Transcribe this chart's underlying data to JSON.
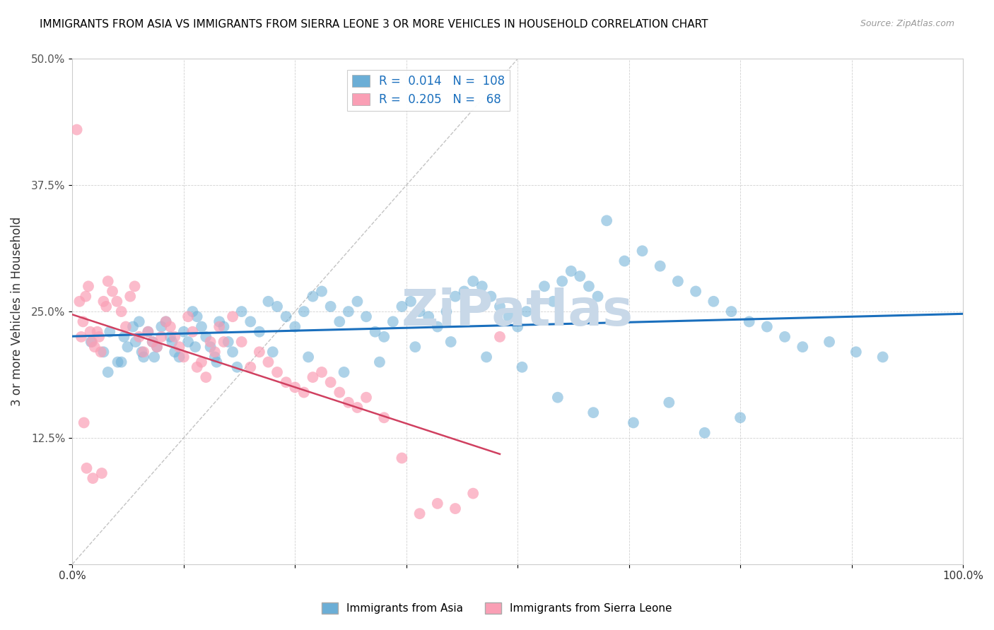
{
  "title": "IMMIGRANTS FROM ASIA VS IMMIGRANTS FROM SIERRA LEONE 3 OR MORE VEHICLES IN HOUSEHOLD CORRELATION CHART",
  "source": "Source: ZipAtlas.com",
  "ylabel": "3 or more Vehicles in Household",
  "xlim": [
    0,
    100
  ],
  "ylim": [
    0,
    50
  ],
  "xticks": [
    0,
    12.5,
    25,
    37.5,
    50,
    62.5,
    75,
    87.5,
    100
  ],
  "yticks": [
    0,
    12.5,
    25,
    37.5,
    50
  ],
  "xtick_labels": [
    "0.0%",
    "",
    "",
    "",
    "",
    "",
    "",
    "",
    "100.0%"
  ],
  "ytick_labels": [
    "",
    "12.5%",
    "25.0%",
    "37.5%",
    "50.0%"
  ],
  "legend_r_asia": "0.014",
  "legend_n_asia": "108",
  "legend_r_sierra": "0.205",
  "legend_n_sierra": "68",
  "blue_color": "#6baed6",
  "pink_color": "#fa9fb5",
  "trend_blue": "#1a6fbd",
  "trend_pink": "#d04060",
  "watermark_color": "#c8d8e8",
  "asia_x": [
    2.1,
    3.5,
    4.2,
    5.1,
    5.8,
    6.2,
    6.8,
    7.1,
    7.5,
    8.0,
    8.5,
    9.0,
    9.5,
    10.0,
    10.5,
    11.0,
    11.5,
    12.0,
    12.5,
    13.0,
    13.5,
    14.0,
    14.5,
    15.0,
    15.5,
    16.0,
    16.5,
    17.0,
    17.5,
    18.0,
    19.0,
    20.0,
    21.0,
    22.0,
    23.0,
    24.0,
    25.0,
    26.0,
    27.0,
    28.0,
    29.0,
    30.0,
    31.0,
    32.0,
    33.0,
    34.0,
    35.0,
    36.0,
    37.0,
    38.0,
    39.0,
    40.0,
    41.0,
    42.0,
    43.0,
    44.0,
    45.0,
    46.0,
    47.0,
    48.0,
    49.0,
    50.0,
    51.0,
    52.0,
    53.0,
    54.0,
    55.0,
    56.0,
    57.0,
    58.0,
    59.0,
    60.0,
    62.0,
    64.0,
    66.0,
    68.0,
    70.0,
    72.0,
    74.0,
    76.0,
    78.0,
    80.0,
    82.0,
    85.0,
    88.0,
    91.0,
    4.0,
    5.5,
    7.8,
    9.2,
    11.2,
    13.8,
    16.2,
    18.5,
    22.5,
    26.5,
    30.5,
    34.5,
    38.5,
    42.5,
    46.5,
    50.5,
    54.5,
    58.5,
    63.0,
    67.0,
    71.0,
    75.0
  ],
  "asia_y": [
    22.0,
    21.0,
    23.0,
    20.0,
    22.5,
    21.5,
    23.5,
    22.0,
    24.0,
    20.5,
    23.0,
    22.0,
    21.5,
    23.5,
    24.0,
    22.5,
    21.0,
    20.5,
    23.0,
    22.0,
    25.0,
    24.5,
    23.5,
    22.5,
    21.5,
    20.5,
    24.0,
    23.5,
    22.0,
    21.0,
    25.0,
    24.0,
    23.0,
    26.0,
    25.5,
    24.5,
    23.5,
    25.0,
    26.5,
    27.0,
    25.5,
    24.0,
    25.0,
    26.0,
    24.5,
    23.0,
    22.5,
    24.0,
    25.5,
    26.0,
    25.0,
    24.5,
    23.5,
    25.0,
    26.5,
    27.0,
    28.0,
    27.5,
    26.5,
    25.5,
    24.5,
    23.5,
    25.0,
    26.0,
    27.5,
    26.0,
    28.0,
    29.0,
    28.5,
    27.5,
    26.5,
    34.0,
    30.0,
    31.0,
    29.5,
    28.0,
    27.0,
    26.0,
    25.0,
    24.0,
    23.5,
    22.5,
    21.5,
    22.0,
    21.0,
    20.5,
    19.0,
    20.0,
    21.0,
    20.5,
    22.0,
    21.5,
    20.0,
    19.5,
    21.0,
    20.5,
    19.0,
    20.0,
    21.5,
    22.0,
    20.5,
    19.5,
    16.5,
    15.0,
    14.0,
    16.0,
    13.0,
    14.5
  ],
  "sierra_x": [
    0.5,
    0.8,
    1.0,
    1.2,
    1.5,
    1.8,
    2.0,
    2.2,
    2.5,
    2.8,
    3.0,
    3.2,
    3.5,
    3.8,
    4.0,
    4.5,
    5.0,
    5.5,
    6.0,
    6.5,
    7.0,
    7.5,
    8.0,
    8.5,
    9.0,
    9.5,
    10.0,
    10.5,
    11.0,
    11.5,
    12.0,
    12.5,
    13.0,
    13.5,
    14.0,
    14.5,
    15.0,
    15.5,
    16.0,
    16.5,
    17.0,
    18.0,
    19.0,
    20.0,
    21.0,
    22.0,
    23.0,
    24.0,
    25.0,
    26.0,
    27.0,
    28.0,
    29.0,
    30.0,
    31.0,
    32.0,
    33.0,
    35.0,
    37.0,
    39.0,
    41.0,
    43.0,
    45.0,
    48.0,
    1.3,
    1.6,
    2.3,
    3.3
  ],
  "sierra_y": [
    43.0,
    26.0,
    22.5,
    24.0,
    26.5,
    27.5,
    23.0,
    22.0,
    21.5,
    23.0,
    22.5,
    21.0,
    26.0,
    25.5,
    28.0,
    27.0,
    26.0,
    25.0,
    23.5,
    26.5,
    27.5,
    22.5,
    21.0,
    23.0,
    22.0,
    21.5,
    22.5,
    24.0,
    23.5,
    22.5,
    21.5,
    20.5,
    24.5,
    23.0,
    19.5,
    20.0,
    18.5,
    22.0,
    21.0,
    23.5,
    22.0,
    24.5,
    22.0,
    19.5,
    21.0,
    20.0,
    19.0,
    18.0,
    17.5,
    17.0,
    18.5,
    19.0,
    18.0,
    17.0,
    16.0,
    15.5,
    16.5,
    14.5,
    10.5,
    5.0,
    6.0,
    5.5,
    7.0,
    22.5,
    14.0,
    9.5,
    8.5,
    9.0
  ]
}
